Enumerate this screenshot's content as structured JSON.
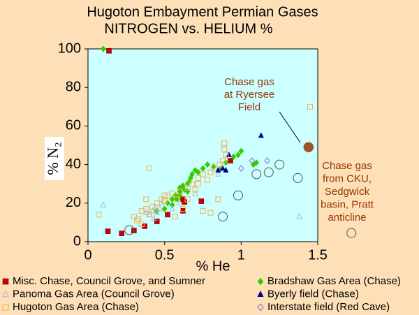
{
  "chart_data": {
    "type": "scatter",
    "title": "Hugoton Embayment Permian Gases",
    "subtitle": "NITROGEN vs. HELIUM %",
    "xlabel": "% He",
    "ylabel": "% N₂",
    "xlim": [
      0,
      1.5
    ],
    "xticks": [
      0,
      0.5,
      1,
      1.5
    ],
    "ylim": [
      0,
      100
    ],
    "yticks": [
      0,
      20,
      40,
      60,
      80,
      100
    ],
    "legend": "bottom",
    "series": [
      {
        "name": "Misc. Chase, Council Grove, and Sumner",
        "marker": "square",
        "color": "#cc0000",
        "x": [
          0.137,
          0.13,
          0.22,
          0.3,
          0.37,
          0.45,
          0.52,
          0.62,
          0.62,
          0.63,
          0.74,
          0.93
        ],
        "values": [
          99,
          5.4,
          4.3,
          5.8,
          8,
          10.5,
          14,
          16,
          22,
          20.6,
          21,
          42
        ]
      },
      {
        "name": "Bradshaw Gas Area (Chase)",
        "marker": "diamond",
        "color": "#33cc00",
        "x": [
          0.1,
          0.5,
          0.52,
          0.55,
          0.57,
          0.6,
          0.6,
          0.62,
          0.63,
          0.65,
          0.66,
          0.67,
          0.68,
          0.7,
          0.72,
          0.75,
          0.78,
          0.82,
          0.87,
          0.9,
          0.95,
          0.98,
          1.0,
          1.08,
          1.1,
          0.6,
          0.58,
          0.55,
          0.65,
          0.45
        ],
        "values": [
          100,
          17,
          20,
          22,
          24,
          26,
          28,
          29,
          27,
          30,
          31,
          33,
          35,
          37,
          36,
          38,
          40,
          39,
          38,
          41,
          44,
          45,
          47,
          40,
          41,
          24,
          22,
          19,
          26,
          16
        ]
      },
      {
        "name": "Panoma Gas Area (Council Grove)",
        "marker": "open-triangle",
        "color": "#aabbcc",
        "x": [
          0.1,
          0.4,
          0.42,
          0.44,
          0.45,
          0.47,
          0.43,
          0.38,
          0.48,
          0.55,
          0.6,
          0.7,
          1.38,
          0.85
        ],
        "values": [
          19,
          14,
          16,
          18,
          15,
          17,
          12,
          15,
          20,
          17,
          20,
          25,
          13,
          35
        ]
      },
      {
        "name": "Byerly field (Chase)",
        "marker": "triangle",
        "color": "#000099",
        "x": [
          0.92,
          1.13,
          0.88,
          0.9,
          0.85
        ],
        "values": [
          45,
          55,
          38,
          37,
          37
        ]
      },
      {
        "name": "Hugoton Gas Area (Chase)",
        "marker": "open-square",
        "color": "#f5b04a",
        "x": [
          0.07,
          0.4,
          1.45,
          0.3,
          0.33,
          0.35,
          0.38,
          0.4,
          0.42,
          0.45,
          0.48,
          0.5,
          0.52,
          0.55,
          0.58,
          0.6,
          0.65,
          0.68,
          0.7,
          0.72,
          0.75,
          0.78,
          0.8,
          0.82,
          0.86,
          0.88,
          0.9,
          0.89,
          0.89,
          0.75,
          0.8,
          0.85,
          0.72,
          0.65,
          0.62,
          0.35,
          0.32,
          0.57,
          0.38,
          0.5
        ],
        "values": [
          14,
          38,
          70,
          13,
          12,
          16,
          17,
          14,
          18,
          20,
          22,
          21,
          24,
          25,
          22,
          26,
          28,
          30,
          27,
          33,
          35,
          32,
          36,
          38,
          40,
          42,
          45,
          48,
          51,
          16,
          15,
          22,
          30,
          22,
          17,
          9,
          11,
          13,
          22,
          24
        ]
      },
      {
        "name": "Interstate field (Red Cave)",
        "marker": "open-diamond",
        "color": "#9966cc",
        "x": [
          1.0,
          1.07,
          1.17
        ],
        "values": [
          38,
          42,
          42
        ]
      }
    ],
    "annotations": [
      {
        "lines": [
          "Chase gas",
          "at Ryersee",
          "Field"
        ],
        "marker": "circle",
        "color": "#a0522d",
        "x": [
          1.44
        ],
        "values": [
          49
        ]
      },
      {
        "lines": [
          "Chase gas",
          "from CKU,",
          "Sedgwick",
          "basin, Pratt",
          "anticline"
        ],
        "marker": "open-circle",
        "color": "#555555",
        "x": [
          0.27,
          0.88,
          0.98,
          1.1,
          1.18,
          1.25,
          1.37,
          1.72
        ],
        "values": [
          6,
          13,
          24,
          35,
          36,
          40,
          33,
          4.5
        ]
      }
    ]
  }
}
